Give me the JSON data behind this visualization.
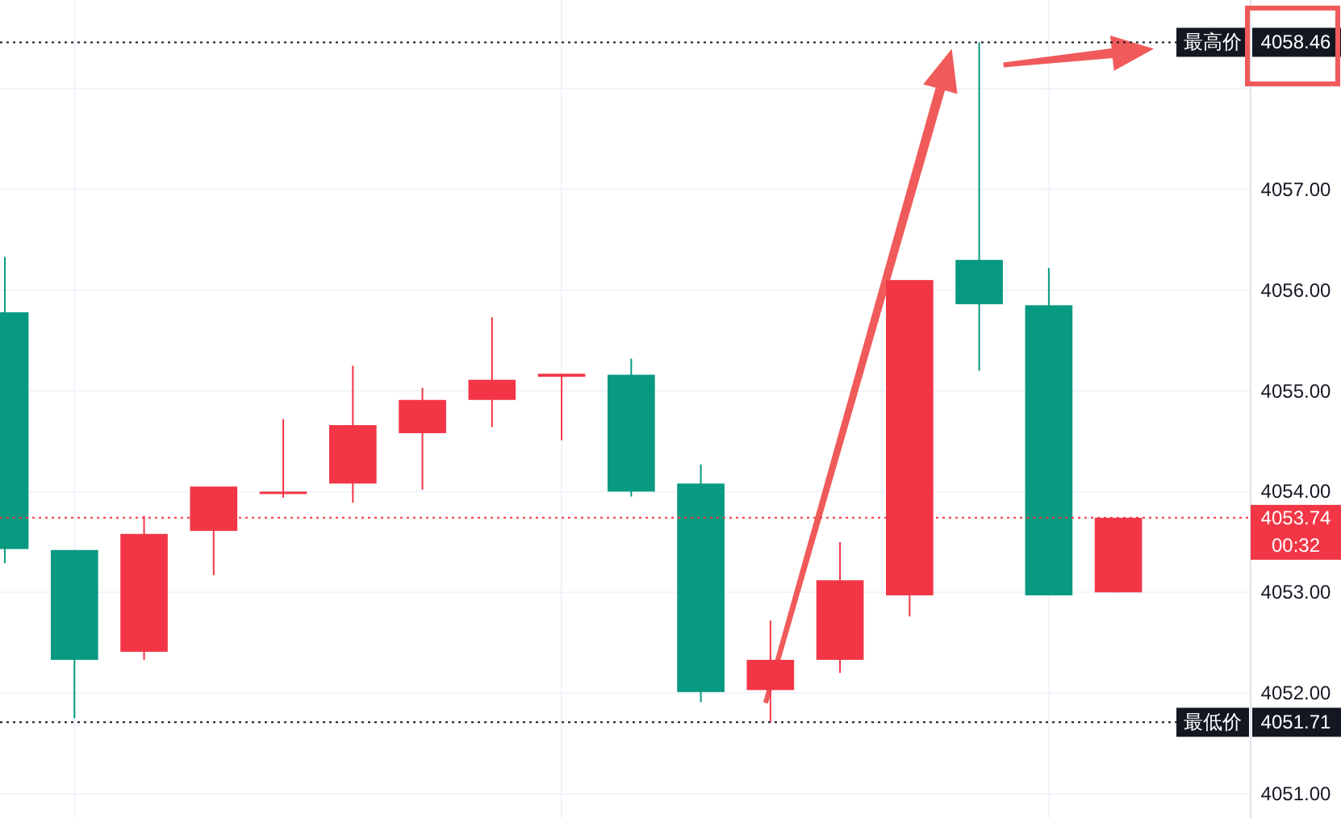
{
  "chart_data": {
    "type": "candlestick",
    "categories": [
      null,
      null,
      null,
      null,
      null,
      null,
      null,
      null,
      null,
      null,
      null,
      null,
      null,
      null,
      null,
      null,
      null
    ],
    "ohlc": [
      [
        4055.78,
        4056.33,
        4053.29,
        4053.43
      ],
      [
        4053.42,
        4053.42,
        4051.75,
        4052.33
      ],
      [
        4052.41,
        4053.76,
        4052.33,
        4053.58
      ],
      [
        4053.61,
        4054.05,
        4053.17,
        4054.05
      ],
      [
        4053.98,
        4054.72,
        4053.94,
        4054.0
      ],
      [
        4054.08,
        4055.25,
        4053.89,
        4054.66
      ],
      [
        4054.58,
        4055.03,
        4054.02,
        4054.91
      ],
      [
        4054.91,
        4055.73,
        4054.64,
        4055.11
      ],
      [
        4055.14,
        4055.17,
        4054.51,
        4055.17
      ],
      [
        4055.16,
        4055.32,
        4053.95,
        4054.0
      ],
      [
        4054.08,
        4054.27,
        4051.91,
        4052.01
      ],
      [
        4052.03,
        4052.72,
        4051.71,
        4052.33
      ],
      [
        4052.33,
        4053.5,
        4052.2,
        4053.12
      ],
      [
        4052.97,
        4056.1,
        4052.76,
        4056.1
      ],
      [
        4056.3,
        4058.46,
        4055.2,
        4055.86
      ],
      [
        4055.85,
        4056.22,
        4052.97,
        4052.97
      ],
      [
        4053.0,
        4053.74,
        4053.0,
        4053.74
      ]
    ],
    "colors": [
      "#089981",
      "#089981",
      "#f23645",
      "#f23645",
      "#f23645",
      "#f23645",
      "#f23645",
      "#f23645",
      "#f23645",
      "#089981",
      "#089981",
      "#f23645",
      "#f23645",
      "#f23645",
      "#089981",
      "#089981",
      "#f23645"
    ],
    "ylim": [
      4050.76,
      4058.88
    ],
    "yticks": [
      {
        "value": 4051,
        "label": "4051.00"
      },
      {
        "value": 4052,
        "label": "4052.00"
      },
      {
        "value": 4053,
        "label": "4053.00"
      },
      {
        "value": 4054,
        "label": "4054.00"
      },
      {
        "value": 4055,
        "label": "4055.00"
      },
      {
        "value": 4056,
        "label": "4056.00"
      },
      {
        "value": 4057,
        "label": "4057.00"
      },
      {
        "value": 4058,
        "label": null
      }
    ],
    "grid": true,
    "ref_lines": [
      {
        "axis": "y",
        "value": 4058.46,
        "label": "最高价",
        "color": "#131722",
        "line_style": "dotted"
      },
      {
        "axis": "y",
        "value": 4051.71,
        "label": "最低价",
        "color": "#131722",
        "line_style": "dotted"
      },
      {
        "axis": "y",
        "value": 4053.74,
        "color": "#f23645",
        "line_style": "dotted"
      }
    ],
    "annotations": [
      "4058.46",
      "4051.71",
      "4053.74",
      "00:32"
    ]
  }
}
